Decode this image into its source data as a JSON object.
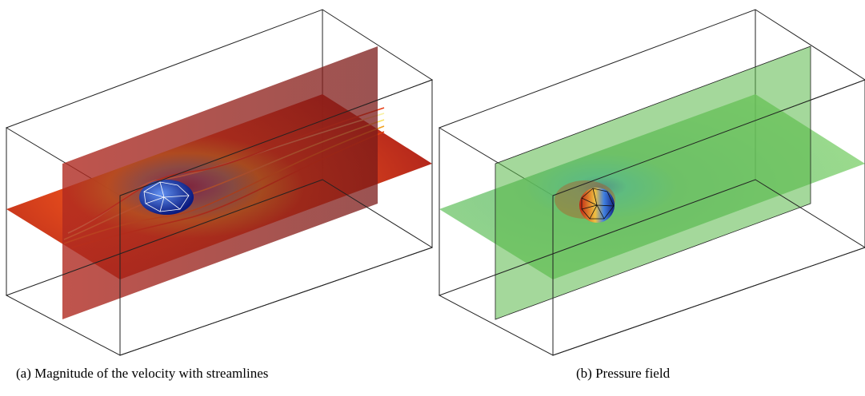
{
  "figure": {
    "panels": [
      {
        "caption": "(a) Magnitude of the velocity with streamlines"
      },
      {
        "caption": "(b) Pressure field"
      }
    ]
  }
}
